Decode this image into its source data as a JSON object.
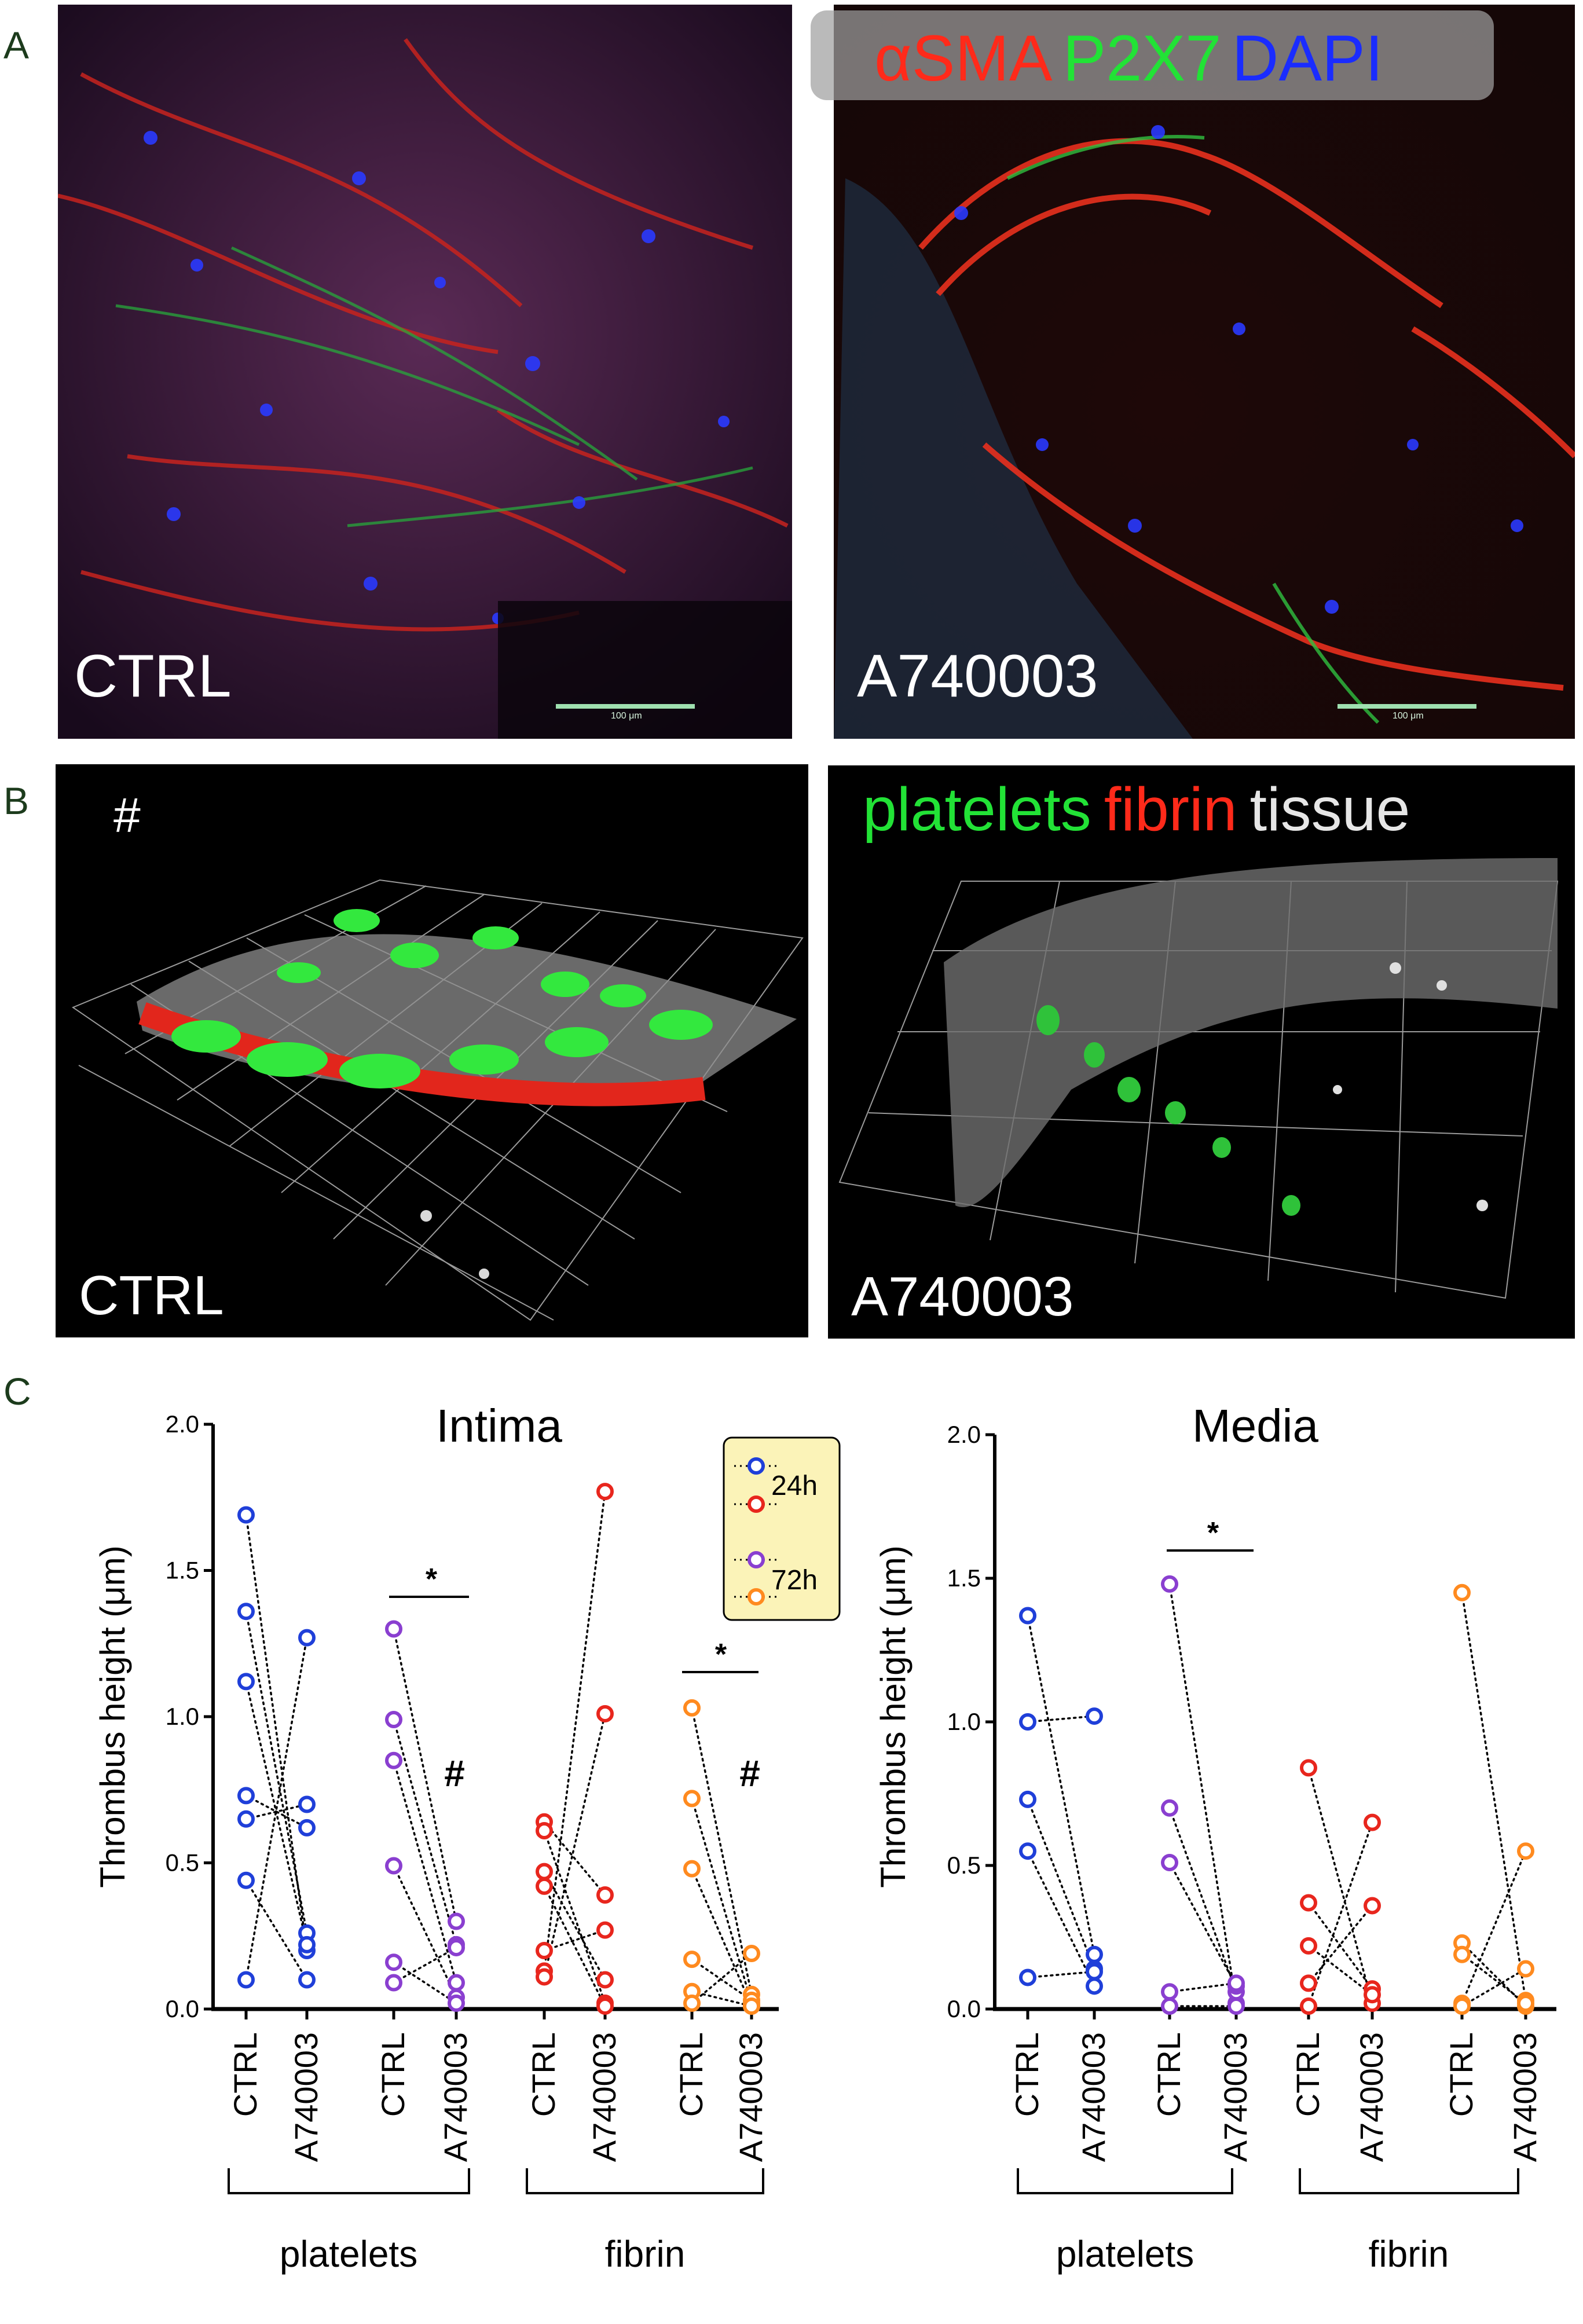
{
  "figure": {
    "panels": {
      "A": {
        "letter": "A",
        "stain_legend": [
          {
            "text": "αSMA",
            "color": "#ff2a1a"
          },
          {
            "text": "P2X7",
            "color": "#22e236"
          },
          {
            "text": "DAPI",
            "color": "#1a2cff"
          }
        ],
        "left_label": "CTRL",
        "right_label": "A740003",
        "scale_bar_text": "100 μm"
      },
      "B": {
        "letter": "B",
        "stain_legend": [
          {
            "text": "platelets",
            "color": "#22e236"
          },
          {
            "text": "fibrin",
            "color": "#ff2a1a"
          },
          {
            "text": "tissue",
            "color": "#e6e6e6"
          }
        ],
        "hash": "#",
        "left_label": "CTRL",
        "right_label": "A740003"
      },
      "C": {
        "letter": "C"
      }
    }
  },
  "chart_data": [
    {
      "type": "scatter",
      "title": "Intima",
      "ylabel": "Thrombus height (μm)",
      "ylim": [
        0,
        2.0
      ],
      "yticks": [
        "0.0",
        "0.5",
        "1.0",
        "1.5",
        "2.0"
      ],
      "categories": [
        "CTRL",
        "A740003",
        "CTRL",
        "A740003",
        "CTRL",
        "A740003",
        "CTRL",
        "A740003"
      ],
      "groups": [
        "platelets",
        "fibrin"
      ],
      "legend": [
        {
          "label": "24h",
          "colors": [
            "#1f3fd9",
            "#e8261d"
          ]
        },
        {
          "label": "72h",
          "colors": [
            "#8a3fd0",
            "#ff8a1f"
          ]
        }
      ],
      "series": [
        {
          "name": "platelets 24h",
          "color": "#1f3fd9",
          "pairs": [
            [
              1.69,
              0.2
            ],
            [
              1.36,
              0.26
            ],
            [
              1.12,
              0.22
            ],
            [
              0.73,
              0.62
            ],
            [
              0.65,
              0.7
            ],
            [
              0.44,
              0.1
            ],
            [
              0.1,
              1.27
            ]
          ]
        },
        {
          "name": "platelets 72h",
          "color": "#8a3fd0",
          "pairs": [
            [
              1.3,
              0.3
            ],
            [
              0.99,
              0.22
            ],
            [
              0.85,
              0.09
            ],
            [
              0.49,
              0.04
            ],
            [
              0.16,
              0.02
            ],
            [
              0.09,
              0.21
            ]
          ]
        },
        {
          "name": "fibrin 24h",
          "color": "#e8261d",
          "pairs": [
            [
              0.64,
              0.39
            ],
            [
              0.61,
              0.02
            ],
            [
              0.47,
              0.1
            ],
            [
              0.42,
              0.01
            ],
            [
              0.2,
              0.27
            ],
            [
              0.13,
              1.77
            ],
            [
              0.11,
              1.01
            ]
          ]
        },
        {
          "name": "fibrin 72h",
          "color": "#ff8a1f",
          "pairs": [
            [
              1.03,
              0.05
            ],
            [
              0.72,
              0.02
            ],
            [
              0.48,
              0.01
            ],
            [
              0.17,
              0.03
            ],
            [
              0.06,
              0.01
            ],
            [
              0.02,
              0.19
            ]
          ]
        }
      ],
      "significance": [
        {
          "label": "*",
          "group": "platelets 72h"
        },
        {
          "label": "*",
          "group": "fibrin 72h"
        }
      ],
      "hash_marks": [
        {
          "label": "#",
          "group": "platelets 72h"
        },
        {
          "label": "#",
          "group": "fibrin 72h"
        }
      ]
    },
    {
      "type": "scatter",
      "title": "Media",
      "ylabel": "Thrombus height (μm)",
      "ylim": [
        0,
        2.0
      ],
      "yticks": [
        "0.0",
        "0.5",
        "1.0",
        "1.5",
        "2.0"
      ],
      "categories": [
        "CTRL",
        "A740003",
        "CTRL",
        "A740003",
        "CTRL",
        "A740003",
        "CTRL",
        "A740003"
      ],
      "groups": [
        "platelets",
        "fibrin"
      ],
      "series": [
        {
          "name": "platelets 24h",
          "color": "#1f3fd9",
          "pairs": [
            [
              1.37,
              0.19
            ],
            [
              1.0,
              1.02
            ],
            [
              0.73,
              0.14
            ],
            [
              0.55,
              0.08
            ],
            [
              0.11,
              0.13
            ]
          ]
        },
        {
          "name": "platelets 72h",
          "color": "#8a3fd0",
          "pairs": [
            [
              1.48,
              0.02
            ],
            [
              0.7,
              0.06
            ],
            [
              0.51,
              0.08
            ],
            [
              0.06,
              0.09
            ],
            [
              0.01,
              0.01
            ]
          ]
        },
        {
          "name": "fibrin 24h",
          "color": "#e8261d",
          "pairs": [
            [
              0.84,
              0.02
            ],
            [
              0.37,
              0.07
            ],
            [
              0.22,
              0.05
            ],
            [
              0.09,
              0.36
            ],
            [
              0.01,
              0.65
            ]
          ]
        },
        {
          "name": "fibrin 72h",
          "color": "#ff8a1f",
          "pairs": [
            [
              1.45,
              0.03
            ],
            [
              0.23,
              0.01
            ],
            [
              0.19,
              0.02
            ],
            [
              0.02,
              0.55
            ],
            [
              0.01,
              0.14
            ]
          ]
        }
      ],
      "significance": [
        {
          "label": "*",
          "group": "platelets 72h"
        }
      ]
    }
  ]
}
